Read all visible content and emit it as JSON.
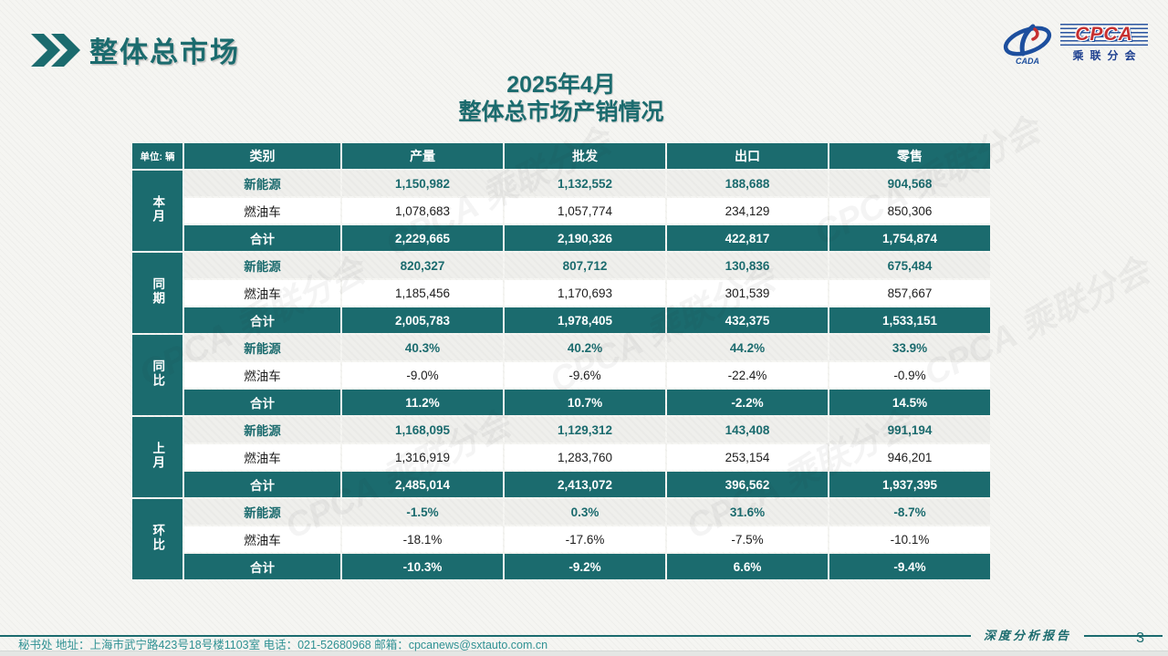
{
  "page": {
    "header_title": "整体总市场",
    "slide_title_line1": "2025年4月",
    "slide_title_line2": "整体总市场产销情况",
    "unit_label": "单位: 辆"
  },
  "logo": {
    "name": "CPCA",
    "subtext": "乘联分会",
    "emblem_caption": "CADA"
  },
  "table": {
    "columns": [
      "类别",
      "产量",
      "批发",
      "出口",
      "零售"
    ],
    "groups": [
      {
        "label": "本月",
        "rows": [
          {
            "category": "新能源",
            "style": "nev",
            "values": [
              "1,150,982",
              "1,132,552",
              "188,688",
              "904,568"
            ]
          },
          {
            "category": "燃油车",
            "style": "fuel",
            "values": [
              "1,078,683",
              "1,057,774",
              "234,129",
              "850,306"
            ]
          },
          {
            "category": "合计",
            "style": "total",
            "values": [
              "2,229,665",
              "2,190,326",
              "422,817",
              "1,754,874"
            ]
          }
        ]
      },
      {
        "label": "同期",
        "rows": [
          {
            "category": "新能源",
            "style": "nev",
            "values": [
              "820,327",
              "807,712",
              "130,836",
              "675,484"
            ]
          },
          {
            "category": "燃油车",
            "style": "fuel",
            "values": [
              "1,185,456",
              "1,170,693",
              "301,539",
              "857,667"
            ]
          },
          {
            "category": "合计",
            "style": "total",
            "values": [
              "2,005,783",
              "1,978,405",
              "432,375",
              "1,533,151"
            ]
          }
        ]
      },
      {
        "label": "同比",
        "rows": [
          {
            "category": "新能源",
            "style": "nev",
            "values": [
              "40.3%",
              "40.2%",
              "44.2%",
              "33.9%"
            ]
          },
          {
            "category": "燃油车",
            "style": "fuel",
            "values": [
              "-9.0%",
              "-9.6%",
              "-22.4%",
              "-0.9%"
            ]
          },
          {
            "category": "合计",
            "style": "total",
            "values": [
              "11.2%",
              "10.7%",
              "-2.2%",
              "14.5%"
            ]
          }
        ]
      },
      {
        "label": "上月",
        "rows": [
          {
            "category": "新能源",
            "style": "nev",
            "values": [
              "1,168,095",
              "1,129,312",
              "143,408",
              "991,194"
            ]
          },
          {
            "category": "燃油车",
            "style": "fuel",
            "values": [
              "1,316,919",
              "1,283,760",
              "253,154",
              "946,201"
            ]
          },
          {
            "category": "合计",
            "style": "total",
            "values": [
              "2,485,014",
              "2,413,072",
              "396,562",
              "1,937,395"
            ]
          }
        ]
      },
      {
        "label": "环比",
        "rows": [
          {
            "category": "新能源",
            "style": "nev",
            "values": [
              "-1.5%",
              "0.3%",
              "31.6%",
              "-8.7%"
            ]
          },
          {
            "category": "燃油车",
            "style": "fuel",
            "values": [
              "-18.1%",
              "-17.6%",
              "-7.5%",
              "-10.1%"
            ]
          },
          {
            "category": "合计",
            "style": "total",
            "values": [
              "-10.3%",
              "-9.2%",
              "6.6%",
              "-9.4%"
            ]
          }
        ]
      }
    ]
  },
  "footer": {
    "report_label": "深度分析报告",
    "page_number": "3",
    "contact": "秘书处  地址：上海市武宁路423号18号楼1103室  电话：021-52680968  邮箱：cpcanews@sxtauto.com.cn"
  },
  "watermark_text": "CPCA 乘联分会",
  "colors": {
    "teal": "#1b6b6e",
    "row_alt": "#efefec",
    "logo_blue": "#1d4f9e",
    "logo_red": "#c63030"
  }
}
